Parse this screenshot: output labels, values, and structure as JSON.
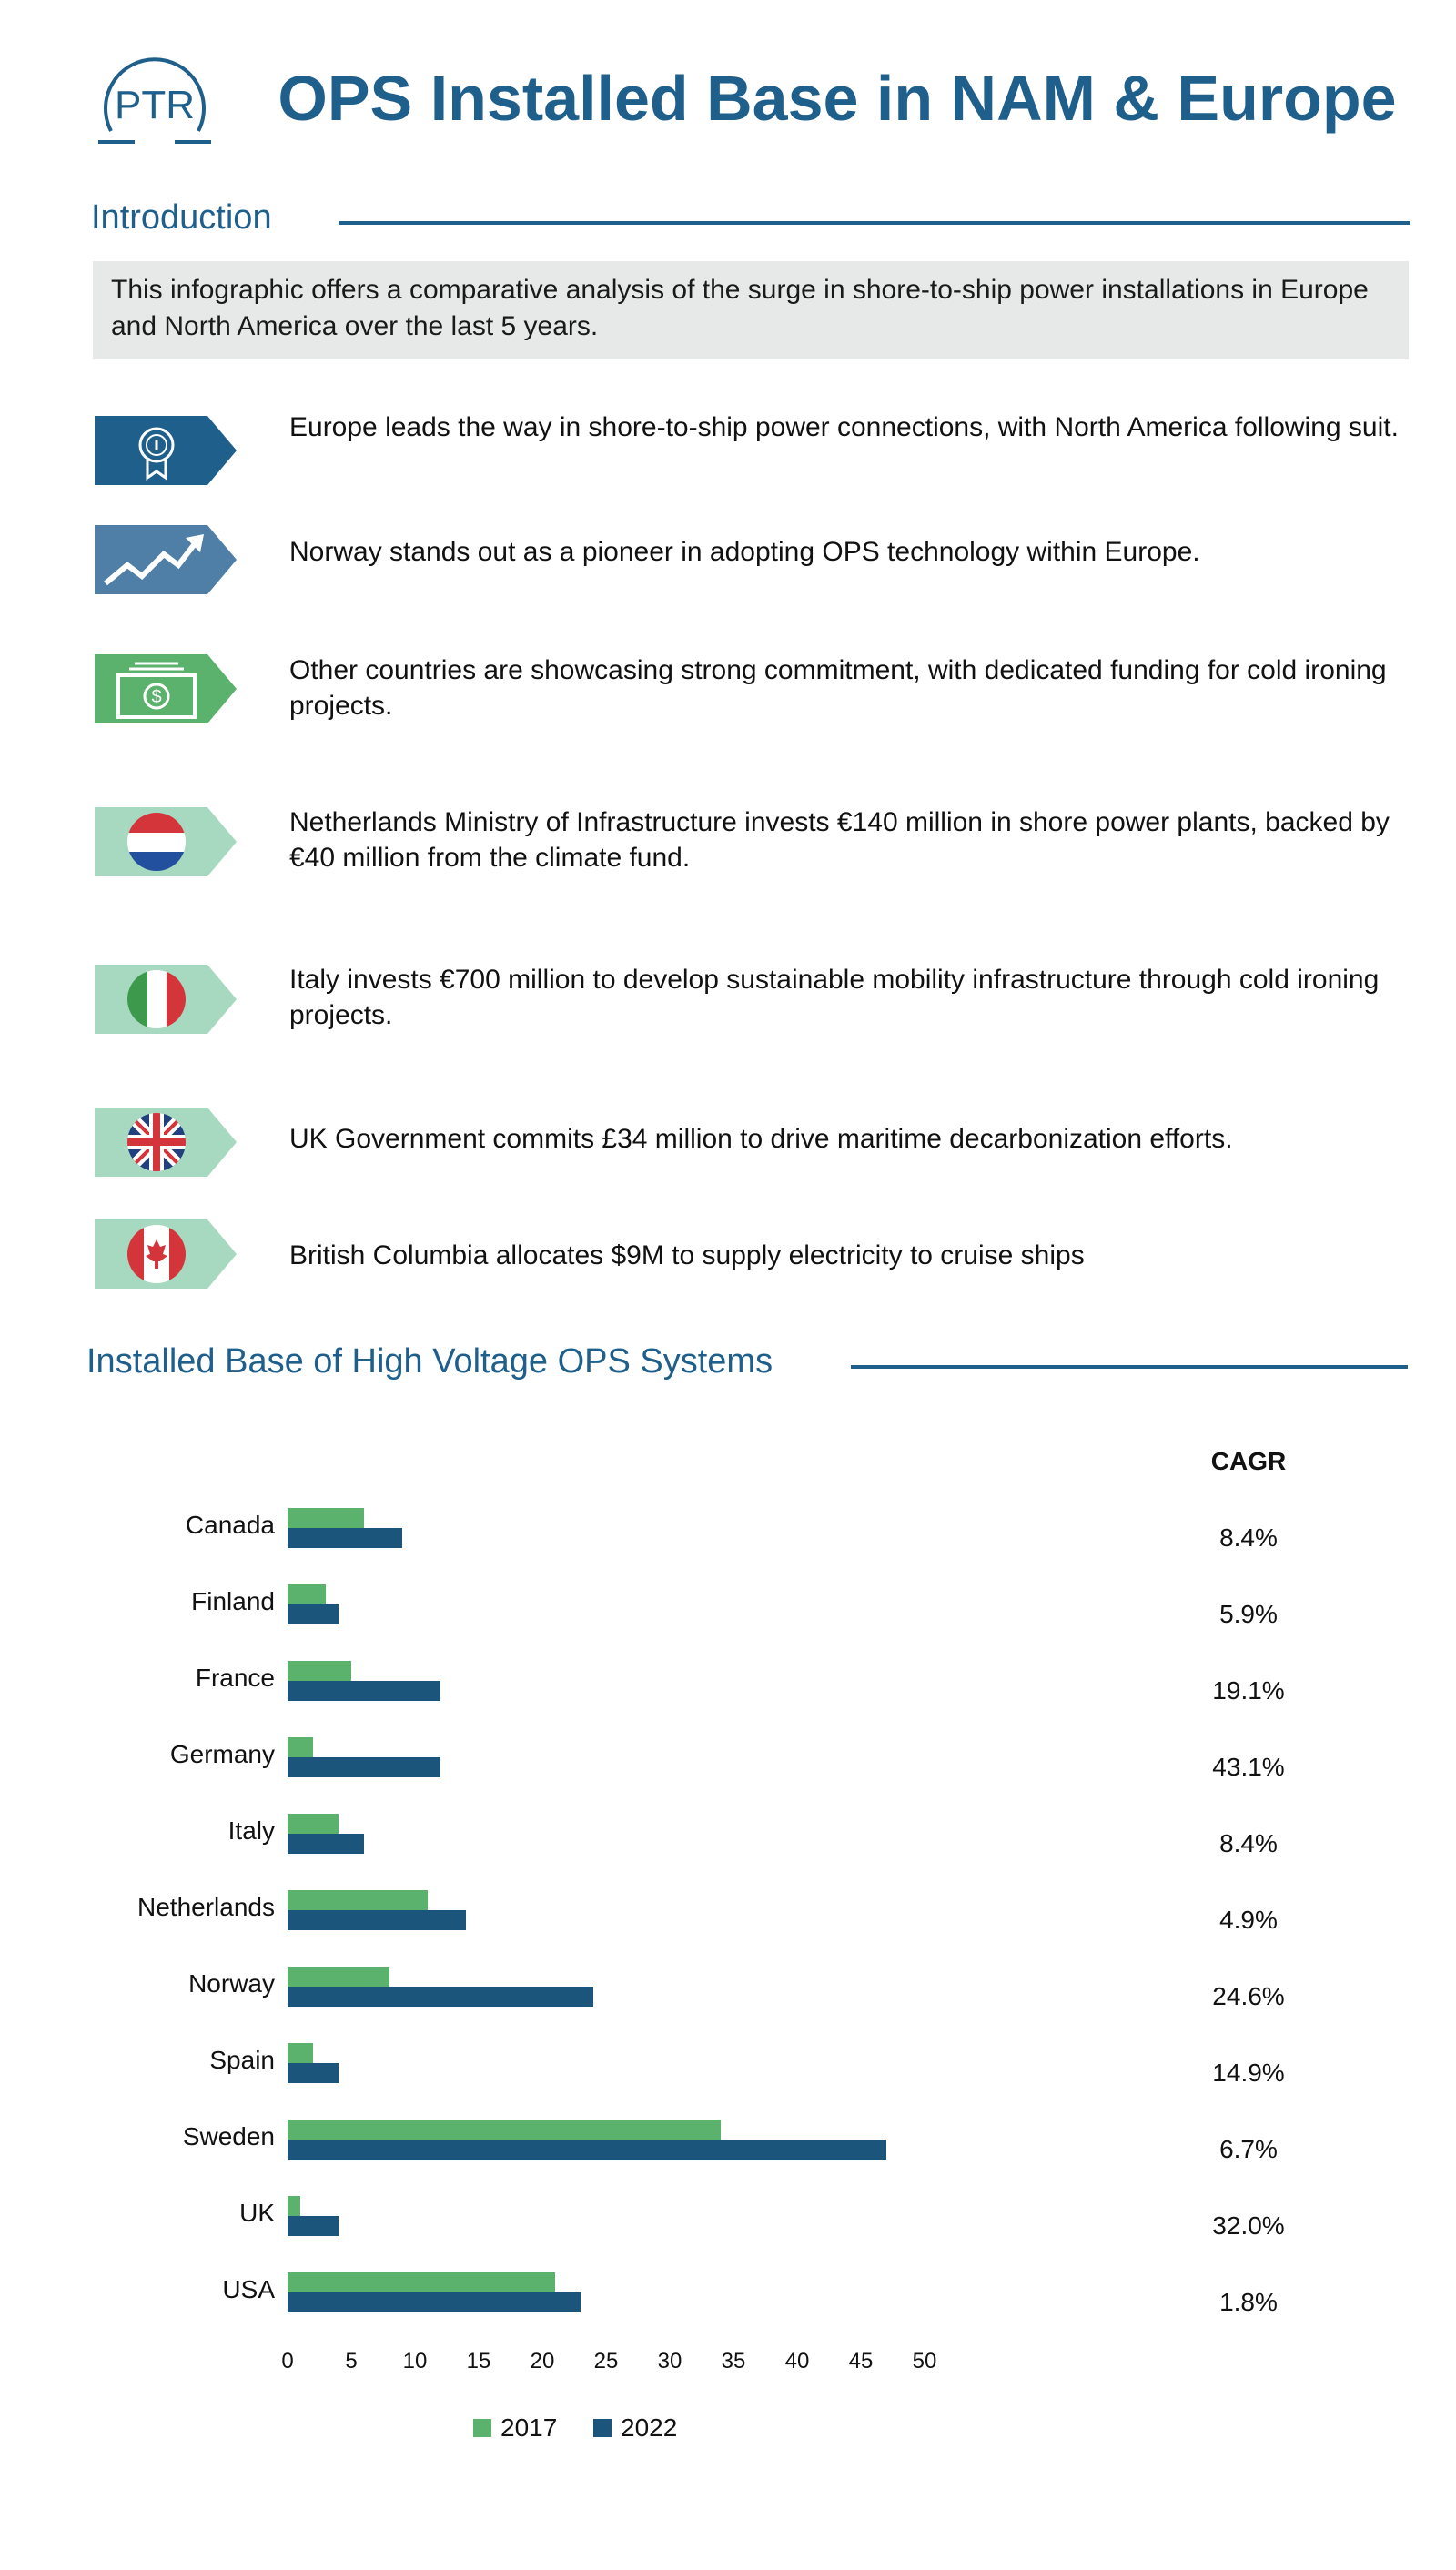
{
  "header": {
    "logo_text": "PTR",
    "title": "OPS Installed Base in NAM & Europe"
  },
  "intro": {
    "title": "Introduction",
    "body": "This infographic offers a comparative analysis of the surge in shore-to-ship power installations in Europe and North America over the last 5 years."
  },
  "points": [
    {
      "icon": "award-icon",
      "text": "Europe leads the way in shore-to-ship power connections, with North America following suit."
    },
    {
      "icon": "trend-up-icon",
      "text": "Norway stands out as a pioneer in adopting OPS technology within Europe."
    },
    {
      "icon": "money-icon",
      "text": "Other countries are showcasing strong commitment, with dedicated funding for cold ironing projects."
    },
    {
      "icon": "netherlands-flag-icon",
      "text": "Netherlands Ministry of Infrastructure invests €140 million in shore power plants, backed by €40 million from the climate fund."
    },
    {
      "icon": "italy-flag-icon",
      "text": "Italy invests €700 million to develop sustainable mobility infrastructure through cold ironing projects."
    },
    {
      "icon": "uk-flag-icon",
      "text": "UK Government commits £34 million to drive maritime decarbonization efforts."
    },
    {
      "icon": "canada-flag-icon",
      "text": "British Columbia allocates $9M to supply electricity to cruise ships"
    }
  ],
  "colors": {
    "accent": "#1f5f8b",
    "series_2017": "#5bb26c",
    "series_2022": "#1b557c",
    "icon_dark_blue": "#1f5f8b",
    "icon_mid_blue": "#4f7fa6",
    "icon_green": "#5bb26c",
    "icon_mint": "#a6d9bf"
  },
  "chart_data": {
    "type": "bar",
    "orientation": "horizontal",
    "title": "Installed Base of High Voltage OPS Systems",
    "categories": [
      "Canada",
      "Finland",
      "France",
      "Germany",
      "Italy",
      "Netherlands",
      "Norway",
      "Spain",
      "Sweden",
      "UK",
      "USA"
    ],
    "series": [
      {
        "name": "2017",
        "values": [
          6,
          3,
          5,
          2,
          4,
          11,
          8,
          2,
          34,
          1,
          21
        ]
      },
      {
        "name": "2022",
        "values": [
          9,
          4,
          12,
          12,
          6,
          14,
          24,
          4,
          47,
          4,
          23
        ]
      }
    ],
    "xlim": [
      0,
      50
    ],
    "xticks": [
      0,
      5,
      10,
      15,
      20,
      25,
      30,
      35,
      40,
      45,
      50
    ],
    "legend_position": "bottom",
    "grid": false,
    "cagr_header": "CAGR",
    "cagr": [
      "8.4%",
      "5.9%",
      "19.1%",
      "43.1%",
      "8.4%",
      "4.9%",
      "24.6%",
      "14.9%",
      "6.7%",
      "32.0%",
      "1.8%"
    ]
  }
}
